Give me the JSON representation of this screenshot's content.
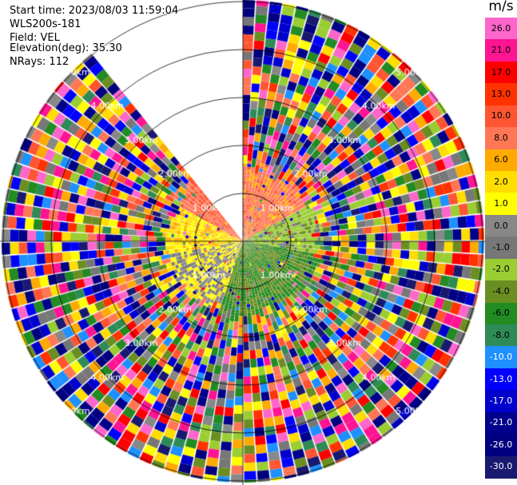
{
  "info": {
    "start_time": "Start time: 2023/08/03 11:59:04",
    "instrument": "WLS200s-181",
    "field": "Field: VEL",
    "elevation": "Elevation(deg): 35.30",
    "nrays": "NRays: 112"
  },
  "colorbar": {
    "unit": "m/s",
    "ticks": [
      "26.0",
      "21.0",
      "17.0",
      "13.0",
      "10.0",
      "8.0",
      "6.0",
      "2.0",
      "1.0",
      "0.0",
      "-1.0",
      "-2.0",
      "-4.0",
      "-6.0",
      "-8.0",
      "-10.0",
      "-13.0",
      "-17.0",
      "-21.0",
      "-26.0",
      "-30.0"
    ],
    "colors": [
      "#ff66cc",
      "#ff1493",
      "#ff0000",
      "#ff3300",
      "#ff5533",
      "#ff7755",
      "#ffaa00",
      "#ffdd00",
      "#ffff00",
      "#888888",
      "#777777",
      "#9acd32",
      "#6b8e23",
      "#228b22",
      "#2e8b57",
      "#1e90ff",
      "#0000ff",
      "#0000cd",
      "#00008b",
      "#000080",
      "#191970"
    ]
  },
  "chart_data": {
    "type": "heatmap",
    "subtype": "ppi-polar",
    "field": "VEL",
    "units": "m/s",
    "elevation_deg": 35.3,
    "nrays": 112,
    "range_ring_labels": [
      "1.00km",
      "2.00km",
      "3.00km",
      "4.00km",
      "5.00km"
    ],
    "range_rings_km": [
      1,
      2,
      3,
      4,
      5
    ],
    "grid": true,
    "colorbar_placement": "right",
    "vmin": -30.0,
    "vmax": 26.0,
    "missing_sector_deg": [
      320,
      360
    ],
    "near_range_pattern": [
      {
        "sector_deg": [
          300,
          360
        ],
        "range_km": [
          0,
          1.6
        ],
        "velocity_ms": 8.0
      },
      {
        "sector_deg": [
          0,
          60
        ],
        "range_km": [
          0,
          1.6
        ],
        "velocity_ms": 7.0
      },
      {
        "sector_deg": [
          60,
          100
        ],
        "range_km": [
          0,
          1.6
        ],
        "velocity_ms": -3.0
      },
      {
        "sector_deg": [
          100,
          200
        ],
        "range_km": [
          0,
          1.6
        ],
        "velocity_ms": -6.0
      },
      {
        "sector_deg": [
          200,
          260
        ],
        "range_km": [
          0,
          1.6
        ],
        "velocity_ms": 0.0
      },
      {
        "sector_deg": [
          260,
          300
        ],
        "range_km": [
          0,
          1.6
        ],
        "velocity_ms": 1.5
      }
    ]
  }
}
